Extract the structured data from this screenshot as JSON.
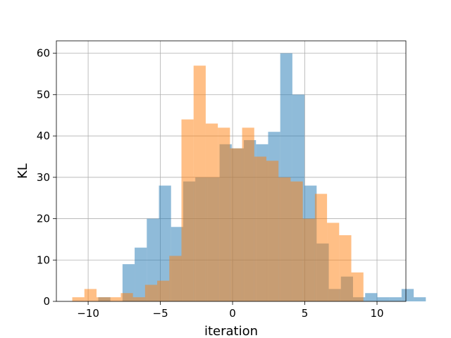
{
  "chart_data": {
    "type": "bar",
    "subtype": "overlapping-histogram",
    "title": "",
    "xlabel": "iteration",
    "ylabel": "KL",
    "xlim": [
      -12.2,
      12.0
    ],
    "ylim": [
      0,
      63
    ],
    "grid": true,
    "xticks": [
      -10,
      -5,
      0,
      5,
      10
    ],
    "xtick_labels": [
      "−10",
      "−5",
      "0",
      "5",
      "10"
    ],
    "yticks": [
      0,
      10,
      20,
      30,
      40,
      50,
      60
    ],
    "ytick_labels": [
      "0",
      "10",
      "20",
      "30",
      "40",
      "50",
      "60"
    ],
    "series": [
      {
        "color": "#1f77b4",
        "opacity": 0.5,
        "bin_start": -9.3,
        "bin_width": 0.84,
        "counts": [
          1,
          0,
          9,
          13,
          20,
          28,
          18,
          29,
          30,
          30,
          38,
          37,
          39,
          38,
          41,
          60,
          50,
          28,
          14,
          3,
          6,
          1,
          2,
          1,
          1,
          3,
          1
        ]
      },
      {
        "color": "#ff7f0e",
        "opacity": 0.5,
        "bin_start": -11.1,
        "bin_width": 0.84,
        "counts": [
          1,
          3,
          1,
          1,
          2,
          1,
          4,
          5,
          11,
          44,
          57,
          43,
          42,
          37,
          42,
          35,
          34,
          30,
          29,
          20,
          26,
          19,
          16,
          7
        ]
      }
    ]
  }
}
